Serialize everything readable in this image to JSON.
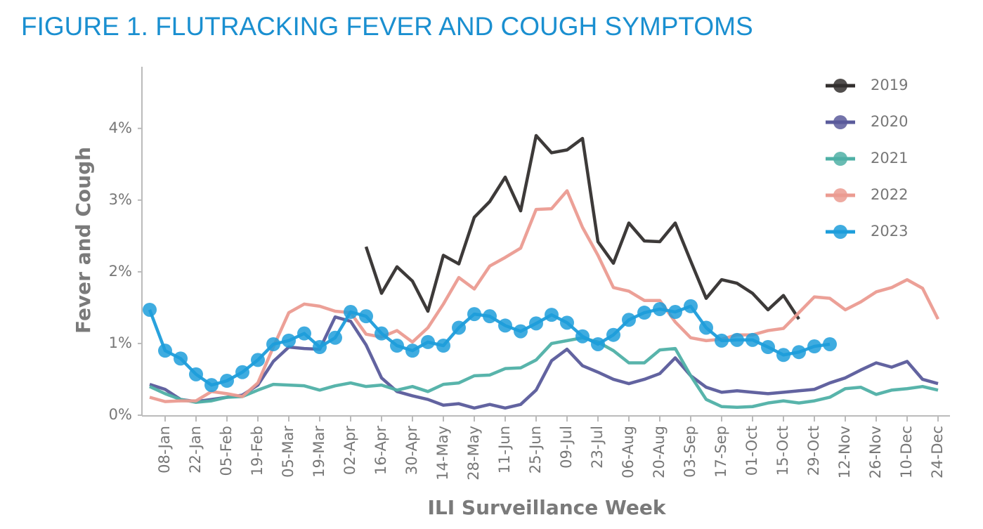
{
  "chart_data": {
    "type": "line",
    "title": "FIGURE 1. FLUTRACKING FEVER AND COUGH SYMPTOMS",
    "xlabel": "ILI Surveillance Week",
    "ylabel": "Fever and Cough",
    "categories": [
      null,
      "08-Jan",
      null,
      "22-Jan",
      null,
      "05-Feb",
      null,
      "19-Feb",
      null,
      "05-Mar",
      null,
      "19-Mar",
      null,
      "02-Apr",
      null,
      "16-Apr",
      null,
      "30-Apr",
      null,
      "14-May",
      null,
      "28-May",
      null,
      "11-Jun",
      null,
      "25-Jun",
      null,
      "09-Jul",
      null,
      "23-Jul",
      null,
      "06-Aug",
      null,
      "20-Aug",
      null,
      "03-Sep",
      null,
      "17-Sep",
      null,
      "01-Oct",
      null,
      "15-Oct",
      null,
      "29-Oct",
      null,
      "12-Nov",
      null,
      "26-Nov",
      null,
      "10-Dec",
      null,
      "24-Dec"
    ],
    "ylim": [
      0,
      4.86
    ],
    "yticks": [
      {
        "value": 0,
        "label": "0%"
      },
      {
        "value": 1,
        "label": "1%"
      },
      {
        "value": 2,
        "label": "2%"
      },
      {
        "value": 3,
        "label": "3%"
      },
      {
        "value": 4,
        "label": "4%"
      }
    ],
    "grid": false,
    "legend": "upper right",
    "series": [
      {
        "name": "2019",
        "color": "#332f2e",
        "markers": false,
        "values": [
          null,
          null,
          null,
          null,
          null,
          null,
          null,
          null,
          null,
          null,
          null,
          null,
          null,
          null,
          2.35,
          1.7,
          2.07,
          1.87,
          1.45,
          2.23,
          2.11,
          2.76,
          2.98,
          3.32,
          2.85,
          3.9,
          3.66,
          3.7,
          3.86,
          2.42,
          2.12,
          2.68,
          2.43,
          2.42,
          2.68,
          2.15,
          1.63,
          1.89,
          1.84,
          1.7,
          1.47,
          1.67,
          1.34,
          null,
          null,
          null,
          null,
          null,
          null,
          null,
          null,
          null
        ]
      },
      {
        "name": "2020",
        "color": "#5a5b9b",
        "markers": false,
        "values": [
          0.43,
          0.36,
          0.22,
          0.19,
          0.22,
          0.25,
          0.28,
          0.42,
          0.75,
          0.95,
          0.93,
          0.92,
          1.37,
          1.31,
          0.98,
          0.52,
          0.33,
          0.27,
          0.22,
          0.14,
          0.16,
          0.1,
          0.15,
          0.1,
          0.15,
          0.35,
          0.76,
          0.92,
          0.69,
          0.6,
          0.5,
          0.44,
          0.5,
          0.58,
          0.8,
          0.55,
          0.39,
          0.32,
          0.34,
          0.32,
          0.3,
          0.32,
          0.34,
          0.36,
          0.45,
          0.52,
          0.63,
          0.73,
          0.67,
          0.75,
          0.5,
          0.44
        ]
      },
      {
        "name": "2021",
        "color": "#4fb0a6",
        "markers": false,
        "values": [
          0.4,
          0.3,
          0.22,
          0.18,
          0.2,
          0.25,
          0.26,
          0.35,
          0.43,
          0.42,
          0.41,
          0.35,
          0.41,
          0.45,
          0.4,
          0.42,
          0.35,
          0.4,
          0.33,
          0.43,
          0.45,
          0.55,
          0.56,
          0.65,
          0.66,
          0.77,
          1.0,
          1.04,
          1.08,
          1.02,
          0.9,
          0.73,
          0.73,
          0.91,
          0.93,
          0.55,
          0.22,
          0.12,
          0.11,
          0.12,
          0.17,
          0.2,
          0.17,
          0.2,
          0.25,
          0.37,
          0.39,
          0.29,
          0.35,
          0.37,
          0.4,
          0.35
        ]
      },
      {
        "name": "2022",
        "color": "#eb9b91",
        "markers": false,
        "values": [
          0.25,
          0.19,
          0.2,
          0.2,
          0.33,
          0.3,
          0.26,
          0.45,
          0.95,
          1.43,
          1.55,
          1.52,
          1.45,
          1.43,
          1.13,
          1.09,
          1.18,
          1.02,
          1.22,
          1.55,
          1.92,
          1.76,
          2.08,
          2.2,
          2.33,
          2.87,
          2.88,
          3.13,
          2.62,
          2.23,
          1.78,
          1.73,
          1.6,
          1.6,
          1.3,
          1.08,
          1.04,
          1.06,
          1.12,
          1.12,
          1.18,
          1.21,
          1.43,
          1.65,
          1.63,
          1.47,
          1.58,
          1.72,
          1.78,
          1.89,
          1.77,
          1.34
        ]
      },
      {
        "name": "2023",
        "color": "#1d9ddb",
        "markers": true,
        "values": [
          1.47,
          0.9,
          0.79,
          0.57,
          0.42,
          0.48,
          0.6,
          0.77,
          0.99,
          1.04,
          1.14,
          0.95,
          1.08,
          1.44,
          1.38,
          1.14,
          0.97,
          0.9,
          1.02,
          0.97,
          1.22,
          1.41,
          1.38,
          1.25,
          1.17,
          1.28,
          1.4,
          1.29,
          1.1,
          0.99,
          1.12,
          1.33,
          1.43,
          1.48,
          1.44,
          1.52,
          1.22,
          1.04,
          1.05,
          1.05,
          0.95,
          0.84,
          0.88,
          0.96,
          0.99,
          null,
          null,
          null,
          null,
          null,
          null,
          null
        ]
      }
    ]
  }
}
